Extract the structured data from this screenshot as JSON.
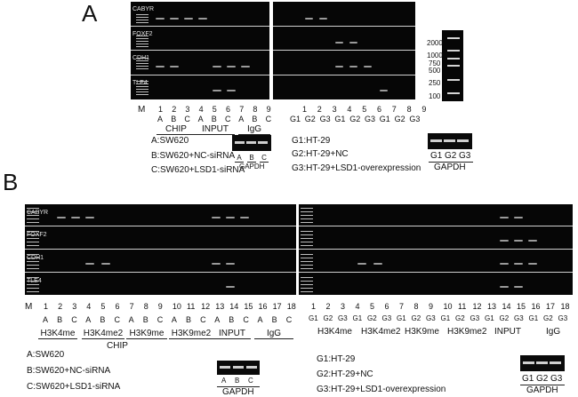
{
  "panels": {
    "a": {
      "letter": "A",
      "genes": [
        "CABYR",
        "FOXF2",
        "CDH1",
        "TLE4"
      ],
      "lane_marker": "M",
      "left_lanes": [
        "1",
        "2",
        "3",
        "4",
        "5",
        "6",
        "7",
        "8",
        "9"
      ],
      "left_abc": [
        "A",
        "B",
        "C",
        "A",
        "B",
        "C",
        "A",
        "B",
        "C"
      ],
      "left_groups": [
        "CHIP",
        "INPUT",
        "IgG"
      ],
      "right_lanes": [
        "1",
        "2",
        "3",
        "4",
        "5",
        "6",
        "7",
        "8",
        "9"
      ],
      "right_g": [
        "G1",
        "G2",
        "G3",
        "G1",
        "G2",
        "G3",
        "G1",
        "G2",
        "G3"
      ],
      "marker_sizes": [
        "2000",
        "1000",
        "750",
        "500",
        "250",
        "100"
      ],
      "legend_left": [
        "A:SW620",
        "B:SW620+NC-siRNA",
        "C:SW620+LSD1-siRNA"
      ],
      "legend_right": [
        "G1:HT-29",
        "G2:HT-29+NC",
        "G3:HT-29+LSD1-overexpression"
      ],
      "gapdh_label": "GAPDH",
      "gapdh_left_lanes": [
        "A",
        "B",
        "C"
      ],
      "gapdh_right_lanes": [
        "G1",
        "G2",
        "G3"
      ]
    },
    "b": {
      "letter": "B",
      "genes": [
        "CABYR",
        "FOXF2",
        "CDH1",
        "TLE4"
      ],
      "lane_marker": "M",
      "left_lanes": [
        "1",
        "2",
        "3",
        "4",
        "5",
        "6",
        "7",
        "8",
        "9",
        "10",
        "11",
        "12",
        "13",
        "14",
        "15",
        "16",
        "17",
        "18"
      ],
      "left_abc": [
        "A",
        "B",
        "C",
        "A",
        "B",
        "C",
        "A",
        "B",
        "C",
        "A",
        "B",
        "C",
        "A",
        "B",
        "C",
        "A",
        "B",
        "C"
      ],
      "left_groups": [
        "H3K4me",
        "H3K4me2",
        "H3K9me",
        "H3K9me2",
        "INPUT",
        "IgG"
      ],
      "left_super": "CHIP",
      "right_lanes": [
        "1",
        "2",
        "3",
        "4",
        "5",
        "6",
        "7",
        "8",
        "9",
        "10",
        "11",
        "12",
        "13",
        "14",
        "15",
        "16",
        "17",
        "18"
      ],
      "right_g": [
        "G1",
        "G2",
        "G3",
        "G1",
        "G2",
        "G3",
        "G1",
        "G2",
        "G3",
        "G1",
        "G2",
        "G3",
        "G1",
        "G2",
        "G3",
        "G1",
        "G2",
        "G3"
      ],
      "right_groups": [
        "H3K4me",
        "H3K4me2",
        "H3K9me",
        "H3K9me2",
        "INPUT",
        "IgG"
      ],
      "legend_left": [
        "A:SW620",
        "B:SW620+NC-siRNA",
        "C:SW620+LSD1-siRNA"
      ],
      "legend_right": [
        "G1:HT-29",
        "G2:HT-29+NC",
        "G3:HT-29+LSD1-overexpression"
      ],
      "gapdh_label": "GAPDH",
      "gapdh_left_lanes": [
        "A",
        "B",
        "C"
      ],
      "gapdh_right_lanes": [
        "G1",
        "G2",
        "G3"
      ]
    }
  }
}
